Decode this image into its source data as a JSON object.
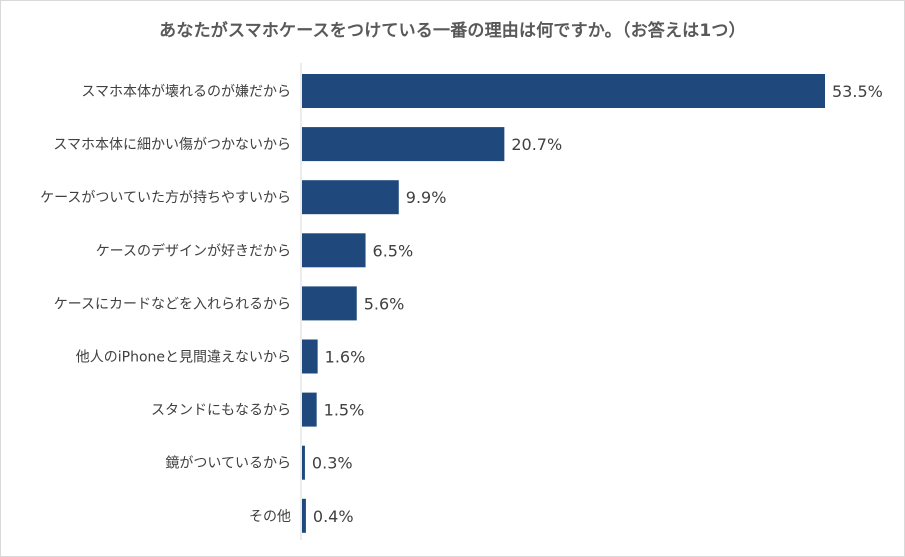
{
  "chart_data": {
    "type": "bar",
    "orientation": "horizontal",
    "title": "あなたがスマホケースをつけている一番の理由は何ですか。（お答えは1つ）",
    "categories": [
      "スマホ本体が壊れるのが嫌だから",
      "スマホ本体に細かい傷がつかないから",
      "ケースがついていた方が持ちやすいから",
      "ケースのデザインが好きだから",
      "ケースにカードなどを入れられるから",
      "他人のiPhoneと見間違えないから",
      "スタンドにもなるから",
      "鏡がついているから",
      "その他"
    ],
    "values": [
      53.5,
      20.7,
      9.9,
      6.5,
      5.6,
      1.6,
      1.5,
      0.3,
      0.4
    ],
    "value_labels": [
      "53.5%",
      "20.7%",
      "9.9%",
      "6.5%",
      "5.6%",
      "1.6%",
      "1.5%",
      "0.3%",
      "0.4%"
    ],
    "bar_color": "#1f497d",
    "xlim": [
      0,
      60
    ],
    "grid": false,
    "legend": "none"
  }
}
